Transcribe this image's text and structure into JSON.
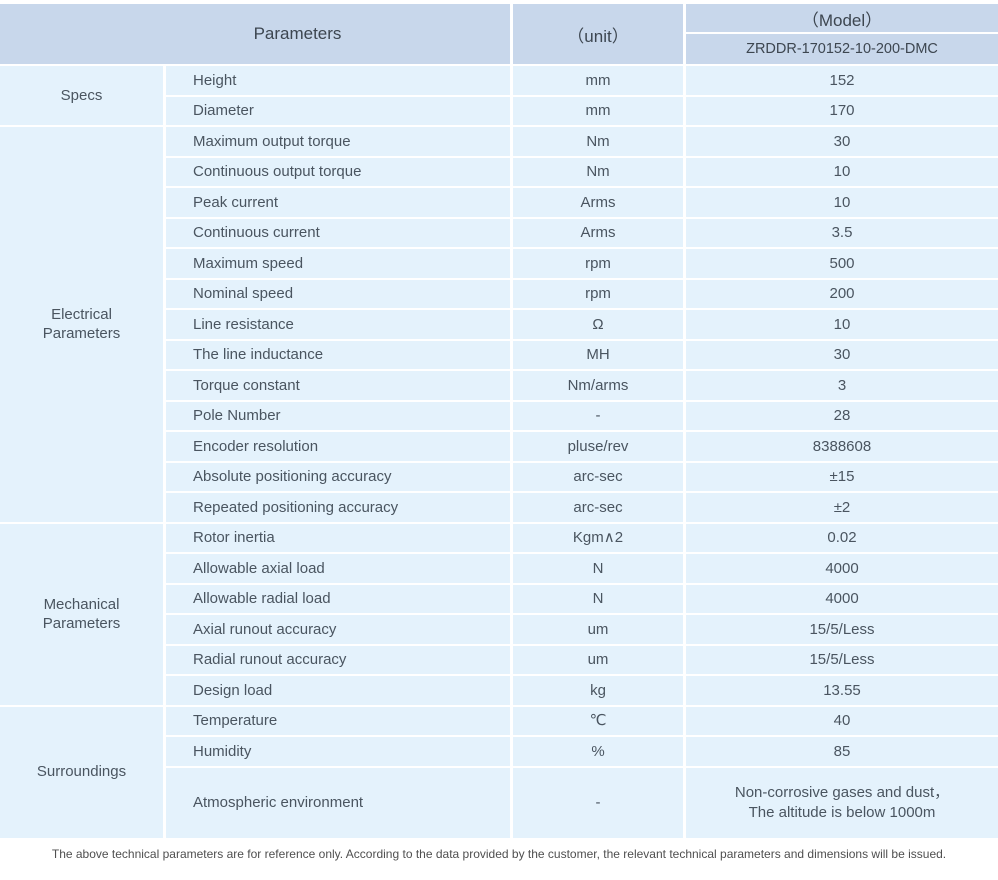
{
  "colors": {
    "header_bg": "#c8d7eb",
    "row_bg": "#e4f2fc",
    "text_dark": "#3d4650",
    "text_body": "#4a5560"
  },
  "header": {
    "parameters": "Parameters",
    "unit": "（unit）",
    "model": "（Model）",
    "model_code": "ZRDDR-170152-10-200-DMC"
  },
  "sections": [
    {
      "label": "Specs",
      "rows": [
        {
          "param": "Height",
          "unit": "mm",
          "value": "152"
        },
        {
          "param": "Diameter",
          "unit": "mm",
          "value": "170"
        }
      ]
    },
    {
      "label": "Electrical Parameters",
      "rows": [
        {
          "param": "Maximum output torque",
          "unit": "Nm",
          "value": "30"
        },
        {
          "param": "Continuous output torque",
          "unit": "Nm",
          "value": "10"
        },
        {
          "param": "Peak current",
          "unit": "Arms",
          "value": "10"
        },
        {
          "param": "Continuous current",
          "unit": "Arms",
          "value": "3.5"
        },
        {
          "param": "Maximum speed",
          "unit": "rpm",
          "value": "500"
        },
        {
          "param": "Nominal speed",
          "unit": "rpm",
          "value": "200"
        },
        {
          "param": "Line resistance",
          "unit": "Ω",
          "value": "10"
        },
        {
          "param": "The line inductance",
          "unit": "MH",
          "value": "30"
        },
        {
          "param": "Torque constant",
          "unit": "Nm/arms",
          "value": "3"
        },
        {
          "param": "Pole Number",
          "unit": "-",
          "value": "28"
        },
        {
          "param": "Encoder resolution",
          "unit": "pluse/rev",
          "value": "8388608"
        },
        {
          "param": "Absolute positioning accuracy",
          "unit": "arc-sec",
          "value": "±15"
        },
        {
          "param": "Repeated positioning accuracy",
          "unit": "arc-sec",
          "value": "±2"
        }
      ]
    },
    {
      "label": "Mechanical Parameters",
      "rows": [
        {
          "param": "Rotor inertia",
          "unit": "Kgm∧2",
          "value": "0.02"
        },
        {
          "param": "Allowable axial load",
          "unit": "N",
          "value": "4000"
        },
        {
          "param": "Allowable radial load",
          "unit": "N",
          "value": "4000"
        },
        {
          "param": "Axial runout accuracy",
          "unit": "um",
          "value": "15/5/Less"
        },
        {
          "param": "Radial runout accuracy",
          "unit": "um",
          "value": "15/5/Less"
        },
        {
          "param": "Design load",
          "unit": "kg",
          "value": "13.55"
        }
      ]
    },
    {
      "label": "Surroundings",
      "rows": [
        {
          "param": "Temperature",
          "unit": "℃",
          "value": "40"
        },
        {
          "param": "Humidity",
          "unit": "%",
          "value": "85"
        },
        {
          "param": "Atmospheric environment",
          "unit": "-",
          "value": "Non-corrosive gases and dust，\nThe altitude is below 1000m"
        }
      ]
    }
  ],
  "footer": {
    "note": "The above technical parameters are for reference only. According to the data provided by the customer, the relevant technical parameters and dimensions will be issued."
  }
}
